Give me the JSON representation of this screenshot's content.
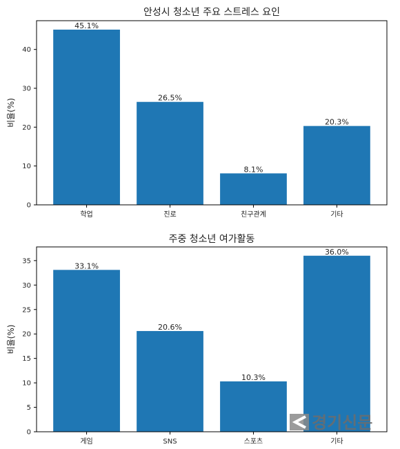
{
  "chart_data": [
    {
      "type": "bar",
      "title": "안성시 청소년 주요 스트레스 요인",
      "xlabel": "",
      "ylabel": "비율(%)",
      "categories": [
        "학업",
        "진로",
        "친구관계",
        "기타"
      ],
      "values": [
        45.1,
        26.5,
        8.1,
        20.3
      ],
      "data_labels": [
        "45.1%",
        "26.5%",
        "8.1%",
        "20.3%"
      ],
      "ylim": [
        0,
        47.4
      ],
      "yticks": [
        0,
        10,
        20,
        30,
        40
      ],
      "color": "#1f77b4",
      "grid": false
    },
    {
      "type": "bar",
      "title": "주중 청소년 여가활동",
      "xlabel": "",
      "ylabel": "비율(%)",
      "categories": [
        "게임",
        "SNS",
        "스포츠",
        "기타"
      ],
      "values": [
        33.1,
        20.6,
        10.3,
        36.0
      ],
      "data_labels": [
        "33.1%",
        "20.6%",
        "10.3%",
        "36.0%"
      ],
      "ylim": [
        0,
        37.8
      ],
      "yticks": [
        0,
        5,
        10,
        15,
        20,
        25,
        30,
        35
      ],
      "color": "#1f77b4",
      "grid": false
    }
  ],
  "watermark": {
    "text": "경기신문",
    "icon": "gyeonggi-shinmun-logo-icon"
  }
}
